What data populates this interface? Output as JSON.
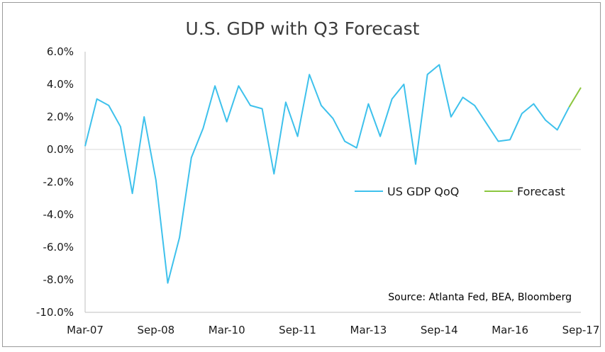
{
  "chart_data": {
    "type": "line",
    "title": "U.S. GDP with Q3 Forecast",
    "xlabel": "",
    "ylabel": "",
    "ylim": [
      -10,
      6
    ],
    "y_ticks": [
      "6.0%",
      "4.0%",
      "2.0%",
      "0.0%",
      "-2.0%",
      "-4.0%",
      "-6.0%",
      "-8.0%",
      "-10.0%"
    ],
    "x_ticks": [
      "Mar-07",
      "Sep-08",
      "Mar-10",
      "Sep-11",
      "Mar-13",
      "Sep-14",
      "Mar-16",
      "Sep-17"
    ],
    "grid": false,
    "legend_position": "middle-right",
    "series": [
      {
        "name": "US GDP QoQ",
        "color": "#3ec1ec",
        "x": [
          "Mar-07",
          "Jun-07",
          "Sep-07",
          "Dec-07",
          "Mar-08",
          "Jun-08",
          "Sep-08",
          "Dec-08",
          "Mar-09",
          "Jun-09",
          "Sep-09",
          "Dec-09",
          "Mar-10",
          "Jun-10",
          "Sep-10",
          "Dec-10",
          "Mar-11",
          "Jun-11",
          "Sep-11",
          "Dec-11",
          "Mar-12",
          "Jun-12",
          "Sep-12",
          "Dec-12",
          "Mar-13",
          "Jun-13",
          "Sep-13",
          "Dec-13",
          "Mar-14",
          "Jun-14",
          "Sep-14",
          "Dec-14",
          "Mar-15",
          "Jun-15",
          "Sep-15",
          "Dec-15",
          "Mar-16",
          "Jun-16",
          "Sep-16",
          "Dec-16",
          "Mar-17",
          "Jun-17"
        ],
        "values": [
          0.2,
          3.1,
          2.7,
          1.4,
          -2.7,
          2.0,
          -1.9,
          -8.2,
          -5.4,
          -0.5,
          1.3,
          3.9,
          1.7,
          3.9,
          2.7,
          2.5,
          -1.5,
          2.9,
          0.8,
          4.6,
          2.7,
          1.9,
          0.5,
          0.1,
          2.8,
          0.8,
          3.1,
          4.0,
          -0.9,
          4.6,
          5.2,
          2.0,
          3.2,
          2.7,
          1.6,
          0.5,
          0.6,
          2.2,
          2.8,
          1.8,
          1.2,
          2.6
        ]
      },
      {
        "name": "Forecast",
        "color": "#8cc63f",
        "x": [
          "Jun-17",
          "Sep-17"
        ],
        "values": [
          2.6,
          3.8
        ]
      }
    ],
    "annotation": "Source: Atlanta Fed, BEA, Bloomberg"
  }
}
